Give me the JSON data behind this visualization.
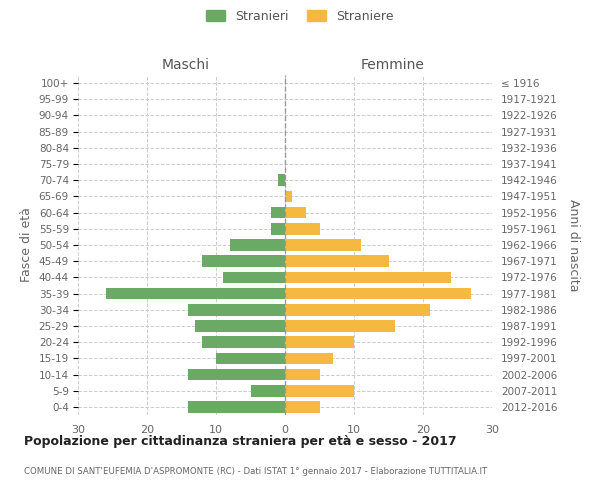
{
  "age_groups": [
    "0-4",
    "5-9",
    "10-14",
    "15-19",
    "20-24",
    "25-29",
    "30-34",
    "35-39",
    "40-44",
    "45-49",
    "50-54",
    "55-59",
    "60-64",
    "65-69",
    "70-74",
    "75-79",
    "80-84",
    "85-89",
    "90-94",
    "95-99",
    "100+"
  ],
  "birth_years": [
    "2012-2016",
    "2007-2011",
    "2002-2006",
    "1997-2001",
    "1992-1996",
    "1987-1991",
    "1982-1986",
    "1977-1981",
    "1972-1976",
    "1967-1971",
    "1962-1966",
    "1957-1961",
    "1952-1956",
    "1947-1951",
    "1942-1946",
    "1937-1941",
    "1932-1936",
    "1927-1931",
    "1922-1926",
    "1917-1921",
    "≤ 1916"
  ],
  "males": [
    14,
    5,
    14,
    10,
    12,
    13,
    14,
    26,
    9,
    12,
    8,
    2,
    2,
    0,
    1,
    0,
    0,
    0,
    0,
    0,
    0
  ],
  "females": [
    5,
    10,
    5,
    7,
    10,
    16,
    21,
    27,
    24,
    15,
    11,
    5,
    3,
    1,
    0,
    0,
    0,
    0,
    0,
    0,
    0
  ],
  "male_color": "#6aaa64",
  "female_color": "#f5b942",
  "background_color": "#ffffff",
  "grid_color": "#cccccc",
  "title": "Popolazione per cittadinanza straniera per età e sesso - 2017",
  "subtitle": "COMUNE DI SANT'EUFEMIA D'ASPROMONTE (RC) - Dati ISTAT 1° gennaio 2017 - Elaborazione TUTTITALIA.IT",
  "xlabel_left": "Maschi",
  "xlabel_right": "Femmine",
  "ylabel_left": "Fasce di età",
  "ylabel_right": "Anni di nascita",
  "xlim": 30,
  "legend_stranieri": "Stranieri",
  "legend_straniere": "Straniere"
}
